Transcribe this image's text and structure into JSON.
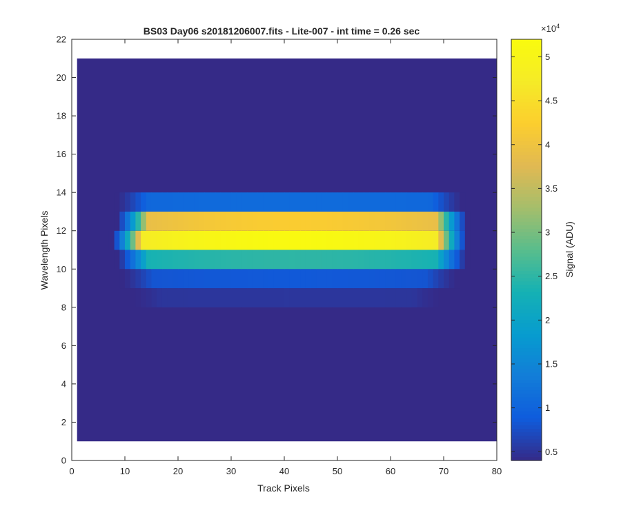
{
  "chart_data": {
    "type": "heatmap",
    "title": "BS03 Day06  s20181206007.fits - Lite-007 - int time = 0.26 sec",
    "xlabel": "Track Pixels",
    "ylabel": "Wavelength Pixels",
    "xlim": [
      0,
      80
    ],
    "ylim": [
      0,
      22
    ],
    "xticks": [
      "0",
      "10",
      "20",
      "30",
      "40",
      "50",
      "60",
      "70",
      "80"
    ],
    "yticks": [
      "0",
      "2",
      "4",
      "6",
      "8",
      "10",
      "12",
      "14",
      "16",
      "18",
      "20",
      "22"
    ],
    "grid": false,
    "data_extent": {
      "x": [
        1,
        80
      ],
      "y": [
        1,
        21
      ]
    },
    "background_value": 4000,
    "rows": [
      {
        "y": 8,
        "x_start": 11,
        "x_end": 69,
        "peak": 5200
      },
      {
        "y": 9,
        "x_start": 9,
        "x_end": 72,
        "peak": 8500
      },
      {
        "y": 10,
        "x_start": 8,
        "x_end": 74,
        "peak": 25000
      },
      {
        "y": 11,
        "x_start": 7,
        "x_end": 74,
        "peak": 51500
      },
      {
        "y": 12,
        "x_start": 8,
        "x_end": 74,
        "peak": 42000
      },
      {
        "y": 13,
        "x_start": 8,
        "x_end": 73,
        "peak": 11000
      }
    ],
    "colorbar": {
      "label": "Signal (ADU)",
      "min": 4000,
      "max": 52000,
      "exponent_label": "×10",
      "exponent": "4",
      "ticks": [
        "0.5",
        "1",
        "1.5",
        "2",
        "2.5",
        "3",
        "3.5",
        "4",
        "4.5",
        "5"
      ],
      "tick_values": [
        0.5,
        1,
        1.5,
        2,
        2.5,
        3,
        3.5,
        4,
        4.5,
        5
      ],
      "colormap": "parula"
    }
  }
}
